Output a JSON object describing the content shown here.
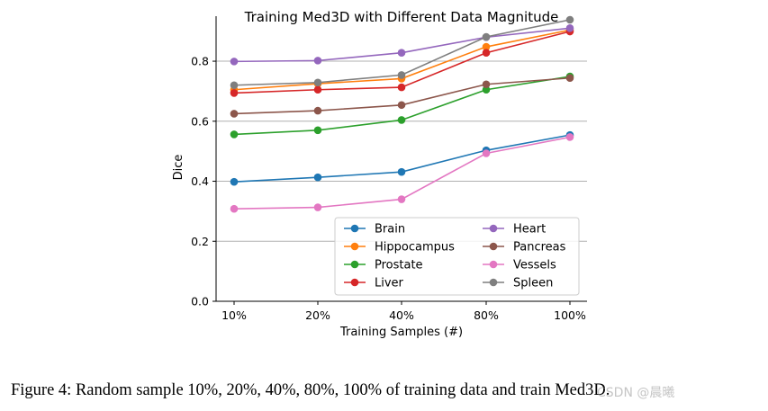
{
  "chart_data": {
    "type": "line",
    "title": "Training Med3D with Different Data Magnitude",
    "xlabel": "Training Samples (#)",
    "ylabel": "Dice",
    "categories": [
      "10%",
      "20%",
      "40%",
      "80%",
      "100%"
    ],
    "ylim": [
      0.0,
      0.95
    ],
    "yticks": [
      0.0,
      0.2,
      0.4,
      0.6,
      0.8
    ],
    "ytick_labels": [
      "0.0",
      "0.2",
      "0.4",
      "0.6",
      "0.8"
    ],
    "grid": "horizontal",
    "legend_position": "lower-right",
    "series": [
      {
        "name": "Brain",
        "color": "#1f77b4",
        "values": [
          0.398,
          0.413,
          0.431,
          0.503,
          0.554
        ]
      },
      {
        "name": "Hippocampus",
        "color": "#ff7f0e",
        "values": [
          0.705,
          0.725,
          0.742,
          0.848,
          0.904
        ]
      },
      {
        "name": "Prostate",
        "color": "#2ca02c",
        "values": [
          0.556,
          0.57,
          0.604,
          0.705,
          0.749
        ]
      },
      {
        "name": "Liver",
        "color": "#d62728",
        "values": [
          0.694,
          0.705,
          0.713,
          0.828,
          0.899
        ]
      },
      {
        "name": "Heart",
        "color": "#9467bd",
        "values": [
          0.799,
          0.802,
          0.828,
          0.88,
          0.91
        ]
      },
      {
        "name": "Pancreas",
        "color": "#8c564b",
        "values": [
          0.625,
          0.635,
          0.654,
          0.723,
          0.744
        ]
      },
      {
        "name": "Vessels",
        "color": "#e377c2",
        "values": [
          0.308,
          0.313,
          0.34,
          0.493,
          0.547
        ]
      },
      {
        "name": "Spleen",
        "color": "#7f7f7f",
        "values": [
          0.72,
          0.729,
          0.754,
          0.881,
          0.938
        ]
      }
    ]
  },
  "caption": "Figure 4: Random sample 10%, 20%, 40%, 80%, 100% of training data and train Med3D.",
  "watermark": "CSDN @晨曦"
}
